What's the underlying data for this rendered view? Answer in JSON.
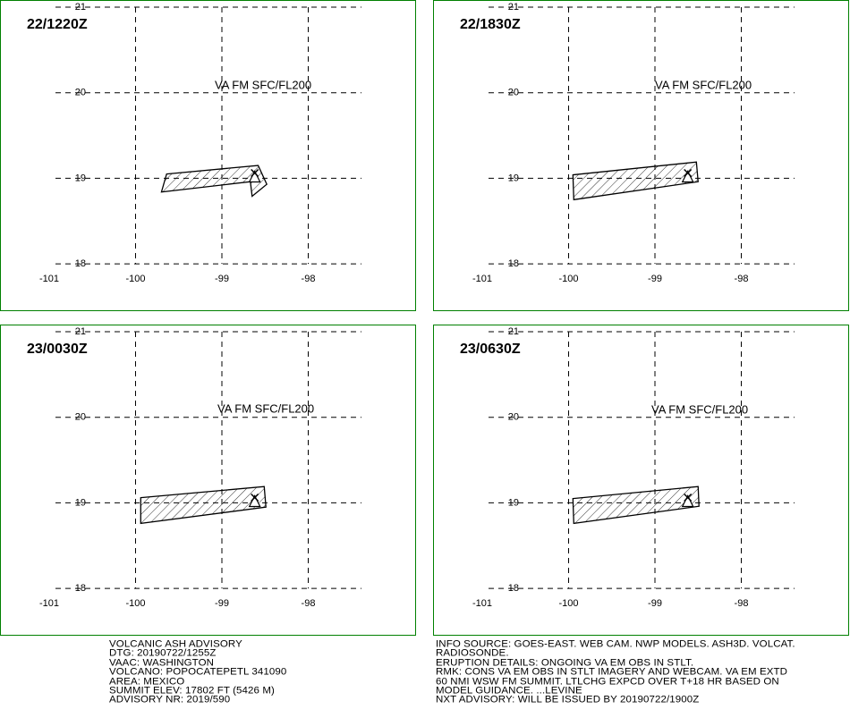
{
  "lon_ticks": [
    -101,
    -100,
    -99,
    -98
  ],
  "lat_ticks": [
    21,
    20,
    19,
    18
  ],
  "summit": {
    "lon": -98.62,
    "lat": 19.02
  },
  "panels": [
    {
      "time": "22/1220Z",
      "label": "VA FM SFC/FL200",
      "polygon": {
        "lon": [
          -99.64,
          -98.58,
          -98.48,
          -98.65,
          -98.67,
          -99.7
        ],
        "lat": [
          19.05,
          19.15,
          18.93,
          18.79,
          18.96,
          18.84
        ]
      }
    },
    {
      "time": "22/1830Z",
      "label": "VA FM SFC/FL200",
      "polygon": {
        "lon": [
          -99.95,
          -98.52,
          -98.5,
          -99.94
        ],
        "lat": [
          19.04,
          19.19,
          18.96,
          18.75
        ]
      }
    },
    {
      "time": "23/0030Z",
      "label": "VA FM SFC/FL200",
      "polygon": {
        "lon": [
          -99.94,
          -98.51,
          -98.49,
          -99.94
        ],
        "lat": [
          19.06,
          19.19,
          18.95,
          18.76
        ]
      }
    },
    {
      "time": "23/0630Z",
      "label": "VA FM SFC/FL200",
      "polygon": {
        "lon": [
          -99.95,
          -98.5,
          -98.49,
          -99.94
        ],
        "lat": [
          19.05,
          19.19,
          18.96,
          18.76
        ]
      }
    }
  ],
  "advisory_left": [
    "VOLCANIC ASH ADVISORY",
    "DTG: 20190722/1255Z",
    "VAAC: WASHINGTON",
    "VOLCANO: POPOCATEPETL 341090",
    "AREA: MEXICO",
    "SUMMIT ELEV: 17802 FT (5426 M)",
    "ADVISORY NR: 2019/590"
  ],
  "advisory_right": [
    "INFO SOURCE: GOES-EAST. WEB CAM. NWP MODELS. ASH3D. VOLCAT.",
    "RADIOSONDE.",
    "ERUPTION DETAILS: ONGOING VA EM OBS IN STLT.",
    "RMK: CONS VA EM OBS IN STLT IMAGERY AND WEBCAM. VA EM EXTD",
    "60 NMI WSW FM SUMMIT. LTLCHG EXPCD OVER T+18 HR BASED ON",
    "MODEL GUIDANCE. ...LEVINE",
    "NXT ADVISORY: WILL BE ISSUED BY 20190722/1900Z"
  ]
}
